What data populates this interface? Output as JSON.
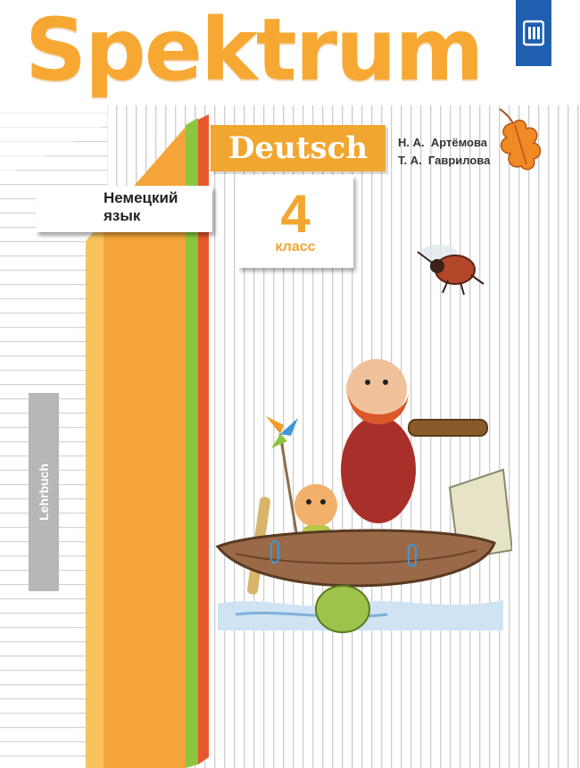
{
  "title": "Spektrum",
  "series_box": "Deutsch",
  "authors": [
    "Н. А.  Артёмова",
    "Т. А.  Гаврилова"
  ],
  "subject": {
    "line1": "Немецкий",
    "line2": "язык"
  },
  "grade": {
    "number": "4",
    "label": "класс"
  },
  "side_label": "Lehrbuch",
  "colors": {
    "orange": "#f1a630",
    "green": "#8cc63f",
    "red": "#e8572c",
    "blue": "#1f5fb0",
    "gray": "#b7b7b7"
  },
  "icons": [
    "publisher-logo-icon",
    "oak-leaf-icon",
    "beetle-icon",
    "boat-illustration"
  ]
}
